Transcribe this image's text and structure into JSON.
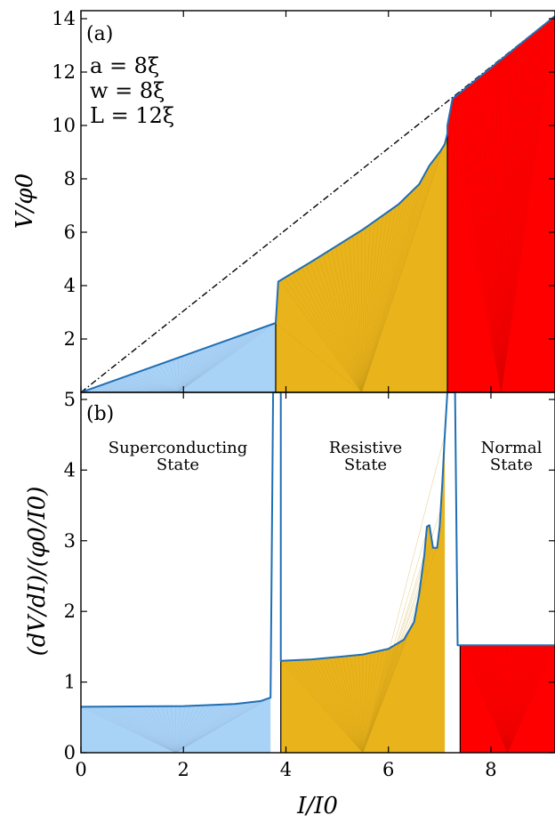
{
  "chart_data": [
    {
      "panel": "(a)",
      "type": "area",
      "ylabel": "V/φ0",
      "ylim": [
        0,
        14.3
      ],
      "xlim": [
        0,
        9.25
      ],
      "yticks": [
        2,
        4,
        6,
        8,
        10,
        12,
        14
      ],
      "yticks_labels": [
        "2",
        "4",
        "6",
        "8",
        "10",
        "12",
        "14"
      ],
      "annotations": [
        "a = 8ξ",
        "w = 8ξ",
        "L = 12ξ"
      ],
      "reference_line": {
        "style": "dash-dot",
        "x": [
          0,
          9.25
        ],
        "y": [
          0,
          14.1
        ]
      },
      "regions": [
        {
          "color": "#a9d2f7",
          "x": [
            0,
            3.8
          ],
          "y": [
            0,
            2.6
          ]
        },
        {
          "color": "#e9b31b",
          "x": [
            3.8,
            3.85,
            4.5,
            5.5,
            6.2,
            6.6,
            6.8,
            7.0,
            7.1,
            7.15
          ],
          "y": [
            2.6,
            4.15,
            4.9,
            6.1,
            7.05,
            7.8,
            8.5,
            9.0,
            9.3,
            9.7
          ]
        },
        {
          "color": "#ff0000",
          "x": [
            7.15,
            7.25,
            9.25
          ],
          "y": [
            10.0,
            11.0,
            14.1
          ]
        }
      ],
      "curve": {
        "x": [
          0,
          3.8,
          3.8,
          3.85,
          4.5,
          5.5,
          6.2,
          6.6,
          6.8,
          7.0,
          7.1,
          7.15,
          7.15,
          7.22,
          7.25,
          9.25
        ],
        "y": [
          0,
          2.6,
          2.6,
          4.15,
          4.9,
          6.1,
          7.05,
          7.8,
          8.5,
          9.0,
          9.3,
          9.7,
          10.0,
          10.7,
          11.0,
          14.1
        ]
      }
    },
    {
      "panel": "(b)",
      "type": "area",
      "xlabel": "I/I0",
      "ylabel": "(dV/dI)/(φ0/I0)",
      "ylim": [
        0,
        5.1
      ],
      "xlim": [
        0,
        9.25
      ],
      "xticks": [
        0,
        2,
        4,
        6,
        8
      ],
      "xticks_labels": [
        "0",
        "2",
        "4",
        "6",
        "8"
      ],
      "yticks": [
        0,
        1,
        2,
        3,
        4,
        5
      ],
      "yticks_labels": [
        "0",
        "1",
        "2",
        "3",
        "4",
        "5"
      ],
      "state_labels": [
        {
          "line1": "Superconducting",
          "line2": "State"
        },
        {
          "line1": "Resistive",
          "line2": "State"
        },
        {
          "line1": "Normal",
          "line2": "State"
        }
      ],
      "regions": [
        {
          "color": "#a9d2f7",
          "x": [
            0,
            2,
            3.0,
            3.5,
            3.7
          ],
          "y": [
            0.65,
            0.66,
            0.69,
            0.73,
            0.78
          ]
        },
        {
          "color": "#e9b31b",
          "x": [
            3.9,
            4.5,
            5.5,
            6.0,
            6.3,
            6.5,
            6.6,
            6.7,
            6.75,
            6.8,
            6.87,
            6.95,
            7.0,
            7.05,
            7.1
          ],
          "y": [
            1.3,
            1.32,
            1.39,
            1.47,
            1.6,
            1.85,
            2.25,
            2.8,
            3.2,
            3.22,
            2.9,
            2.9,
            3.2,
            3.8,
            4.5
          ]
        },
        {
          "color": "#ff0000",
          "x": [
            7.4,
            9.25
          ],
          "y": [
            1.52,
            1.52
          ]
        }
      ],
      "curve": {
        "x": [
          0,
          2,
          3.0,
          3.5,
          3.7,
          3.75,
          3.8,
          3.85,
          3.9,
          3.9,
          4.5,
          5.5,
          6.0,
          6.3,
          6.5,
          6.6,
          6.7,
          6.75,
          6.8,
          6.87,
          6.95,
          7.0,
          7.05,
          7.1,
          7.15,
          7.3,
          7.35,
          7.4,
          9.25
        ],
        "y": [
          0.65,
          0.66,
          0.69,
          0.73,
          0.78,
          5.1,
          5.1,
          5.1,
          5.1,
          1.3,
          1.32,
          1.39,
          1.47,
          1.6,
          1.85,
          2.25,
          2.8,
          3.2,
          3.22,
          2.9,
          2.9,
          3.2,
          3.8,
          4.5,
          5.1,
          5.1,
          1.52,
          1.52,
          1.52
        ]
      }
    }
  ]
}
